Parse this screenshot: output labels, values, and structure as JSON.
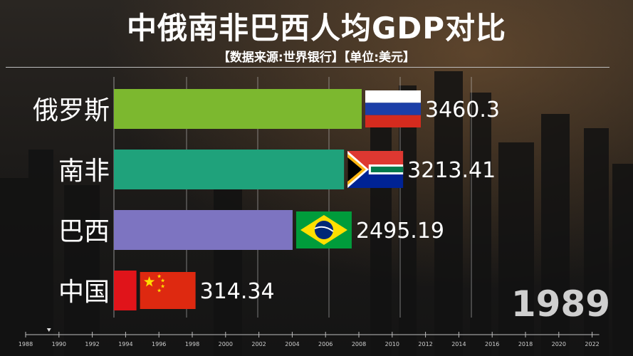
{
  "title": "中俄南非巴西人均GDP对比",
  "subtitle": "【数据来源:世界银行】【单位:美元】",
  "current_year": "1989",
  "colors": {
    "russia": "#7cb82f",
    "south_africa": "#1fa27b",
    "brazil": "#7d74c1",
    "china": "#e0141a"
  },
  "chart_data": {
    "type": "bar",
    "orientation": "horizontal",
    "categories": [
      "俄罗斯",
      "南非",
      "巴西",
      "中国"
    ],
    "values": [
      3460.3,
      3213.41,
      2495.19,
      314.34
    ],
    "value_labels": [
      "3460.3",
      "3213.41",
      "2495.19",
      "314.34"
    ],
    "flag_icons": [
      "russia-flag-icon",
      "south-africa-flag-icon",
      "brazil-flag-icon",
      "china-flag-icon"
    ],
    "xlim": [
      0,
      4000
    ],
    "grid": true,
    "timeline": {
      "ticks": [
        "1988",
        "1990",
        "1992",
        "1994",
        "1996",
        "1998",
        "2000",
        "2002",
        "2004",
        "2006",
        "2008",
        "2010",
        "2012",
        "2014",
        "2016",
        "2018",
        "2020",
        "2022"
      ],
      "current": "1989"
    }
  }
}
